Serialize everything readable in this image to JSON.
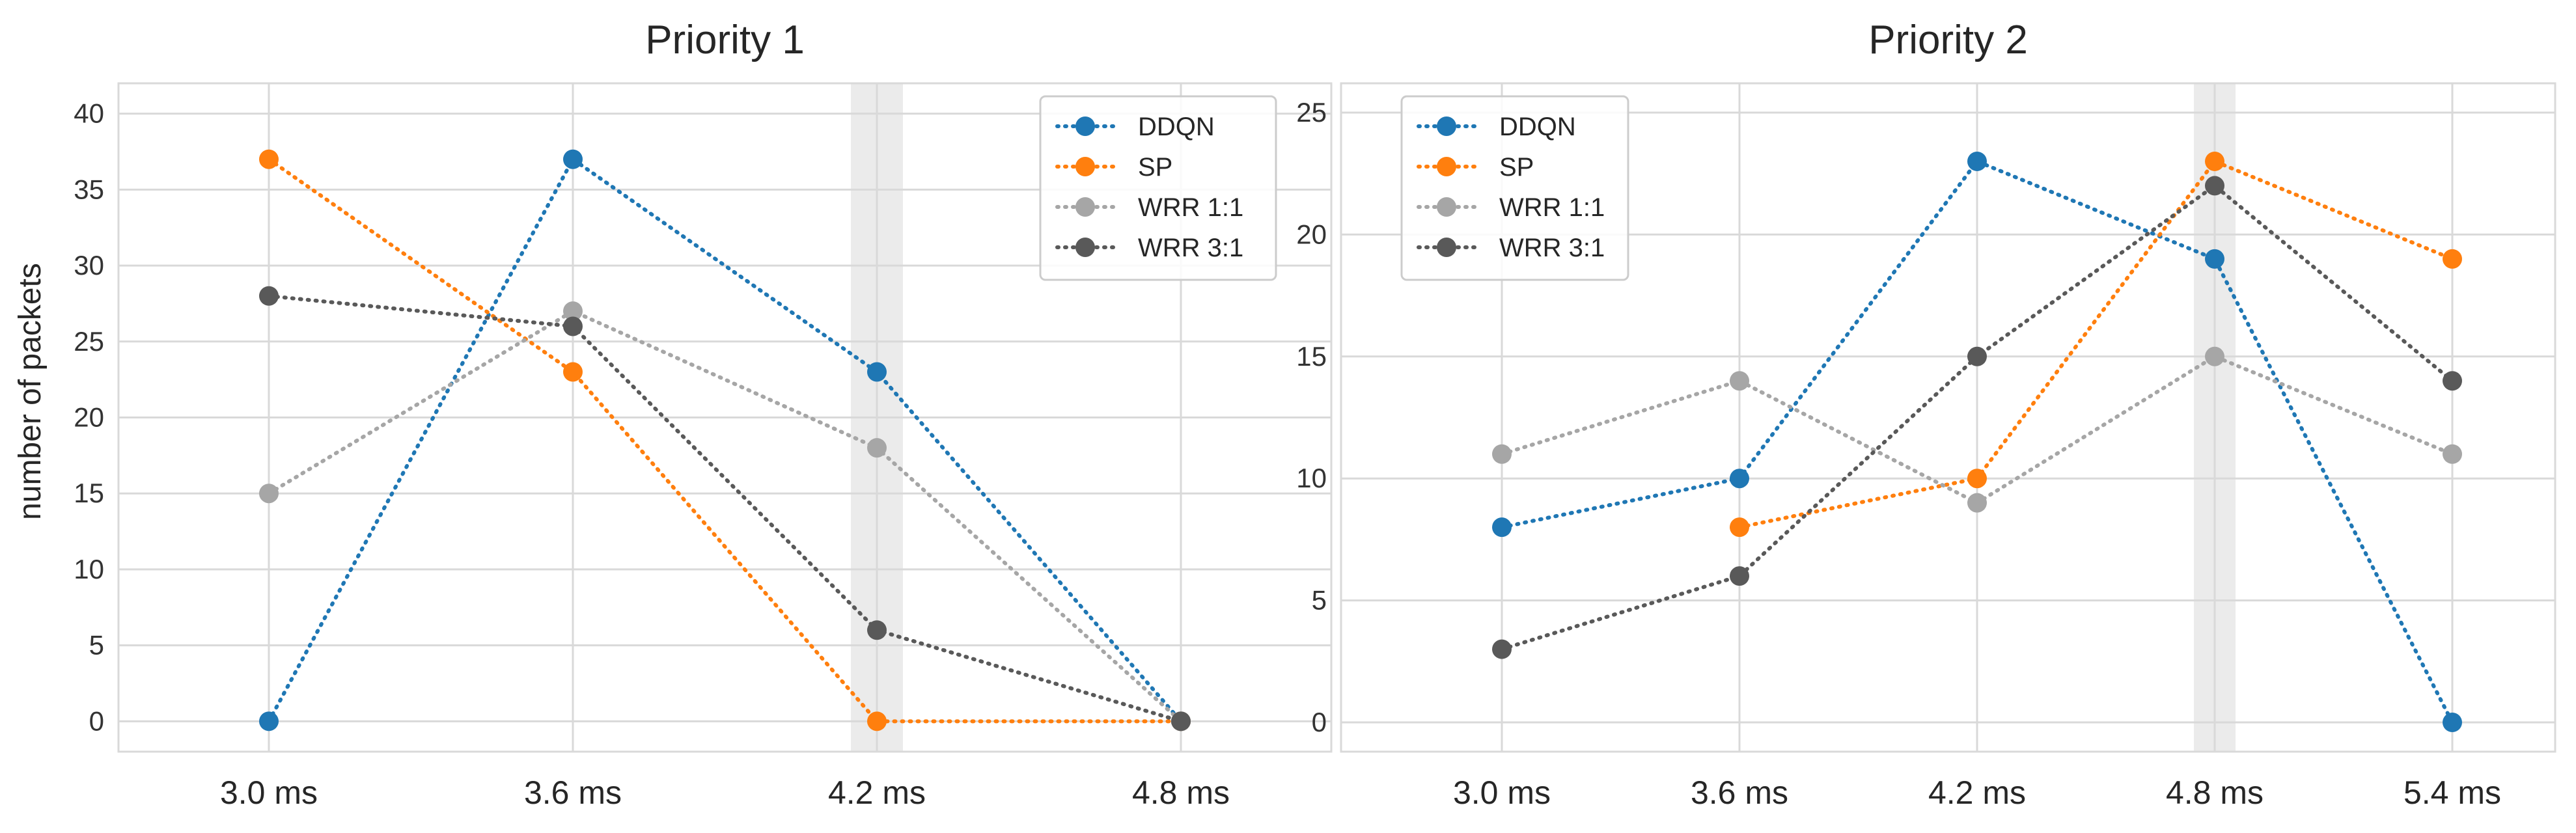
{
  "colors": {
    "DDQN": "#1f77b4",
    "SP": "#ff7f0e",
    "WRR 1:1": "#a6a6a6",
    "WRR 3:1": "#595959",
    "grid": "#d9d9d9",
    "highlight": "#ebebeb"
  },
  "chart_data": [
    {
      "type": "line",
      "title": "Priority 1",
      "xlabel": "",
      "ylabel": "number of packets",
      "categories": [
        "3.0 ms",
        "3.6 ms",
        "4.2 ms",
        "4.8 ms"
      ],
      "ylim": [
        -2,
        42
      ],
      "yticks": [
        0,
        5,
        10,
        15,
        20,
        25,
        30,
        35,
        40
      ],
      "highlight_category": "4.2 ms",
      "legend_position": "top-right",
      "grid": true,
      "series": [
        {
          "name": "DDQN",
          "values": [
            0,
            37,
            23,
            0
          ]
        },
        {
          "name": "SP",
          "values": [
            37,
            23,
            0,
            0
          ]
        },
        {
          "name": "WRR 1:1",
          "values": [
            15,
            27,
            18,
            0
          ]
        },
        {
          "name": "WRR 3:1",
          "values": [
            28,
            26,
            6,
            0
          ]
        }
      ]
    },
    {
      "type": "line",
      "title": "Priority 2",
      "xlabel": "",
      "ylabel": "",
      "categories": [
        "3.0 ms",
        "3.6 ms",
        "4.2 ms",
        "4.8 ms",
        "5.4 ms"
      ],
      "ylim": [
        -1.2,
        26.2
      ],
      "yticks": [
        0,
        5,
        10,
        15,
        20,
        25
      ],
      "highlight_category": "4.8 ms",
      "legend_position": "top-left",
      "grid": true,
      "series": [
        {
          "name": "DDQN",
          "values": [
            8,
            10,
            23,
            19,
            0
          ]
        },
        {
          "name": "SP",
          "values": [
            null,
            8,
            10,
            23,
            19
          ]
        },
        {
          "name": "WRR 1:1",
          "values": [
            11,
            14,
            9,
            15,
            11
          ]
        },
        {
          "name": "WRR 3:1",
          "values": [
            3,
            6,
            15,
            22,
            14
          ]
        }
      ]
    }
  ]
}
